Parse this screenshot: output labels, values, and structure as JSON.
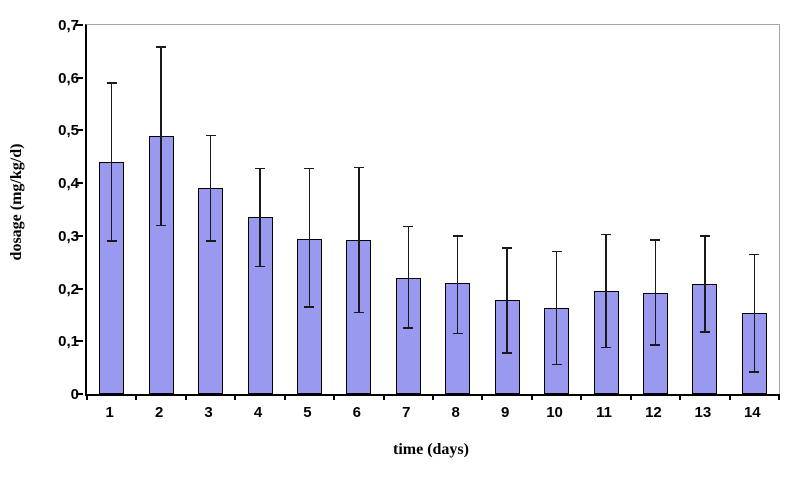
{
  "chart_data": {
    "type": "bar",
    "title": "",
    "xlabel": "time (days)",
    "ylabel": "dosage (mg/kg/d)",
    "categories": [
      "1",
      "2",
      "3",
      "4",
      "5",
      "6",
      "7",
      "8",
      "9",
      "10",
      "11",
      "12",
      "13",
      "14"
    ],
    "values": [
      0.44,
      0.49,
      0.39,
      0.335,
      0.295,
      0.293,
      0.22,
      0.21,
      0.178,
      0.163,
      0.195,
      0.192,
      0.208,
      0.154
    ],
    "error_upper": [
      0.59,
      0.658,
      0.49,
      0.428,
      0.428,
      0.43,
      0.318,
      0.3,
      0.277,
      0.27,
      0.303,
      0.292,
      0.3,
      0.265
    ],
    "error_lower": [
      0.29,
      0.32,
      0.29,
      0.242,
      0.165,
      0.155,
      0.125,
      0.115,
      0.078,
      0.056,
      0.088,
      0.093,
      0.118,
      0.042
    ],
    "ylim": [
      0,
      0.7
    ],
    "y_tick_step": 0.1,
    "y_tick_labels": [
      "0",
      "0,1",
      "0,2",
      "0,3",
      "0,4",
      "0,5",
      "0,6",
      "0,7"
    ],
    "grid": false,
    "legend": "none",
    "bar_color": "#9999f0",
    "bar_border_color": "#000000",
    "error_bar_color": "#1a1a1a",
    "frame_color": "#a6a6a6",
    "axis_color": "#000000",
    "background_color": "#ffffff"
  }
}
